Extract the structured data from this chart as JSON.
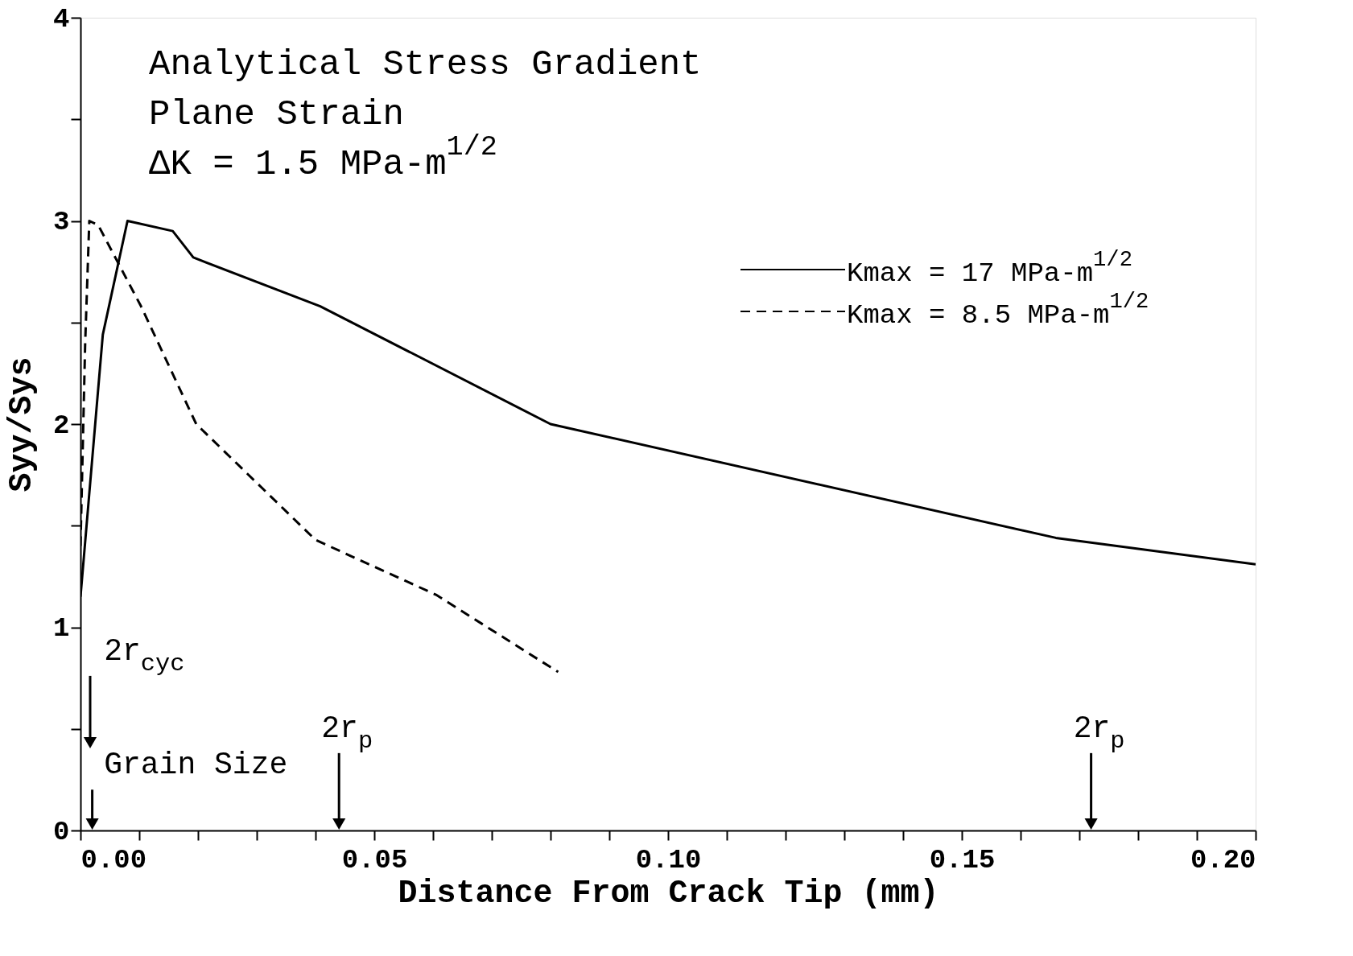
{
  "chart_data": {
    "type": "line",
    "xlabel": "Distance From Crack Tip (mm)",
    "ylabel": "Syy/Sys",
    "xlim": [
      0,
      0.2
    ],
    "ylim": [
      0,
      4
    ],
    "xticks": [
      {
        "value": 0,
        "label": "0.00"
      },
      {
        "value": 0.01,
        "label": null
      },
      {
        "value": 0.02,
        "label": null
      },
      {
        "value": 0.03,
        "label": null
      },
      {
        "value": 0.04,
        "label": null
      },
      {
        "value": 0.05,
        "label": "0.05"
      },
      {
        "value": 0.06,
        "label": null
      },
      {
        "value": 0.07,
        "label": null
      },
      {
        "value": 0.08,
        "label": null
      },
      {
        "value": 0.09,
        "label": null
      },
      {
        "value": 0.1,
        "label": "0.10"
      },
      {
        "value": 0.11,
        "label": null
      },
      {
        "value": 0.12,
        "label": null
      },
      {
        "value": 0.13,
        "label": null
      },
      {
        "value": 0.14,
        "label": null
      },
      {
        "value": 0.15,
        "label": "0.15"
      },
      {
        "value": 0.16,
        "label": null
      },
      {
        "value": 0.17,
        "label": null
      },
      {
        "value": 0.18,
        "label": null
      },
      {
        "value": 0.19,
        "label": null
      },
      {
        "value": 0.2,
        "label": "0.20"
      }
    ],
    "yticks": [
      0,
      {
        "value": 0.5,
        "label": null
      },
      1,
      {
        "value": 1.5,
        "label": null
      },
      2,
      {
        "value": 2.5,
        "label": null
      },
      3,
      {
        "value": 3.5,
        "label": null
      },
      4
    ],
    "grid": false,
    "legend": "top right",
    "marker": "none",
    "series": [
      {
        "name": "Kmax = 17 MPa-m$^{1/2}$",
        "color": "#000000",
        "line_style": "solid",
        "x": [
          0,
          0.0038,
          0.008,
          0.0157,
          0.0192,
          0.0408,
          0.08,
          0.166,
          0.2
        ],
        "values": [
          1.15,
          2.44,
          3.0,
          2.95,
          2.82,
          2.58,
          2.0,
          1.44,
          1.31
        ]
      },
      {
        "name": "Kmax = 8.5 MPa-m$^{1/2}$",
        "color": "#000000",
        "line_style": "dashed",
        "x": [
          0,
          0.0008,
          0.0015,
          0.003,
          0.0103,
          0.0197,
          0.04,
          0.0605,
          0.0813
        ],
        "values": [
          1.4,
          2.4,
          3.0,
          2.98,
          2.58,
          2.0,
          1.43,
          1.16,
          0.78
        ]
      }
    ],
    "annotations": [
      "Analytical Stress Gradient",
      "Plane Strain",
      "ΔK = 1.5 MPa-m$^{1/2}$",
      "2r$_{cyc}$",
      "Grain Size",
      "2r$_{p}$",
      "2r$_{p}$"
    ]
  }
}
